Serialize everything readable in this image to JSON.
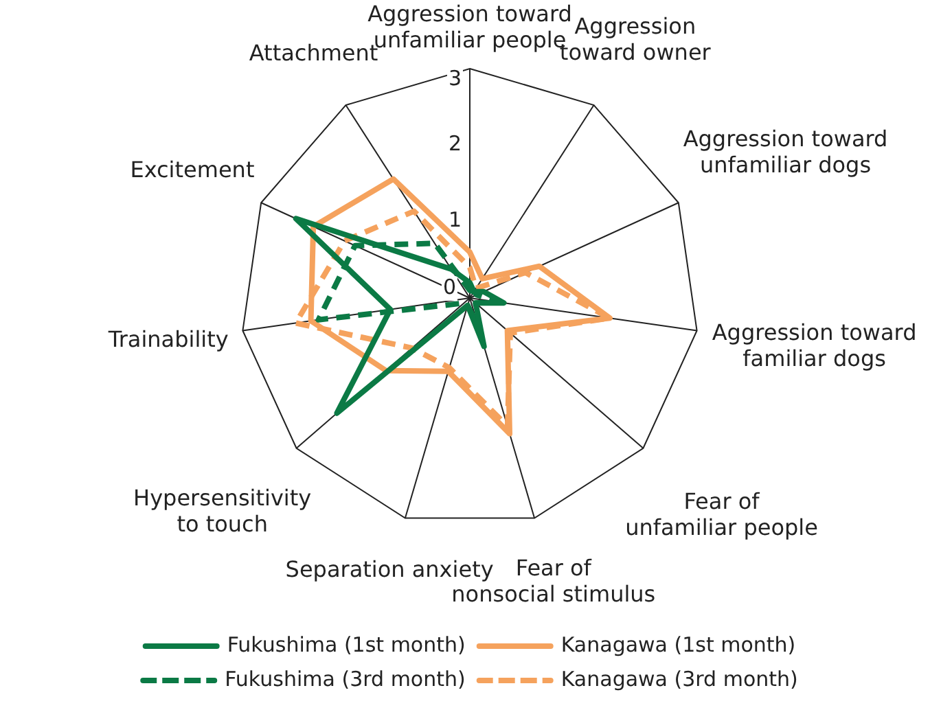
{
  "chart_data": {
    "type": "radar",
    "categories": [
      "Aggression toward\nunfamiliar people",
      "Aggression\ntoward owner",
      "Aggression toward\nunfamiliar dogs",
      "Aggression toward\nfamiliar dogs",
      "Fear of\nunfamiliar people",
      "Fear of\nnonsocial stimulus",
      "Separation anxiety",
      "Hypersensitivity\nto touch",
      "Trainability",
      "Excitement",
      "Attachment"
    ],
    "ylim": [
      0,
      3
    ],
    "yticks": [
      0,
      1,
      2,
      3
    ],
    "legend": "bottom",
    "grid": false,
    "series": [
      {
        "name": "Fukushima (1st month)",
        "color": "#0b7a45",
        "line_style": "solid",
        "values": [
          0.2,
          0.1,
          0.2,
          0.45,
          0.1,
          0.66,
          0.1,
          2.3,
          1.05,
          2.5,
          0.45
        ]
      },
      {
        "name": "Fukushima (3rd month)",
        "color": "#0b7a45",
        "line_style": "dashed",
        "values": [
          0.1,
          0.1,
          0.1,
          0.38,
          0.1,
          0.38,
          0.1,
          0.1,
          2.0,
          1.65,
          0.85
        ]
      },
      {
        "name": "Kanagawa (1st month)",
        "color": "#f5a25d",
        "line_style": "solid",
        "values": [
          0.6,
          0.3,
          1.0,
          1.85,
          0.65,
          1.85,
          1.0,
          1.45,
          2.1,
          2.25,
          1.85
        ]
      },
      {
        "name": "Kanagawa (3rd month)",
        "color": "#f5a25d",
        "line_style": "dashed",
        "values": [
          0.4,
          0.15,
          0.8,
          1.85,
          0.7,
          1.75,
          0.95,
          1.0,
          2.3,
          1.8,
          1.35
        ]
      }
    ]
  }
}
